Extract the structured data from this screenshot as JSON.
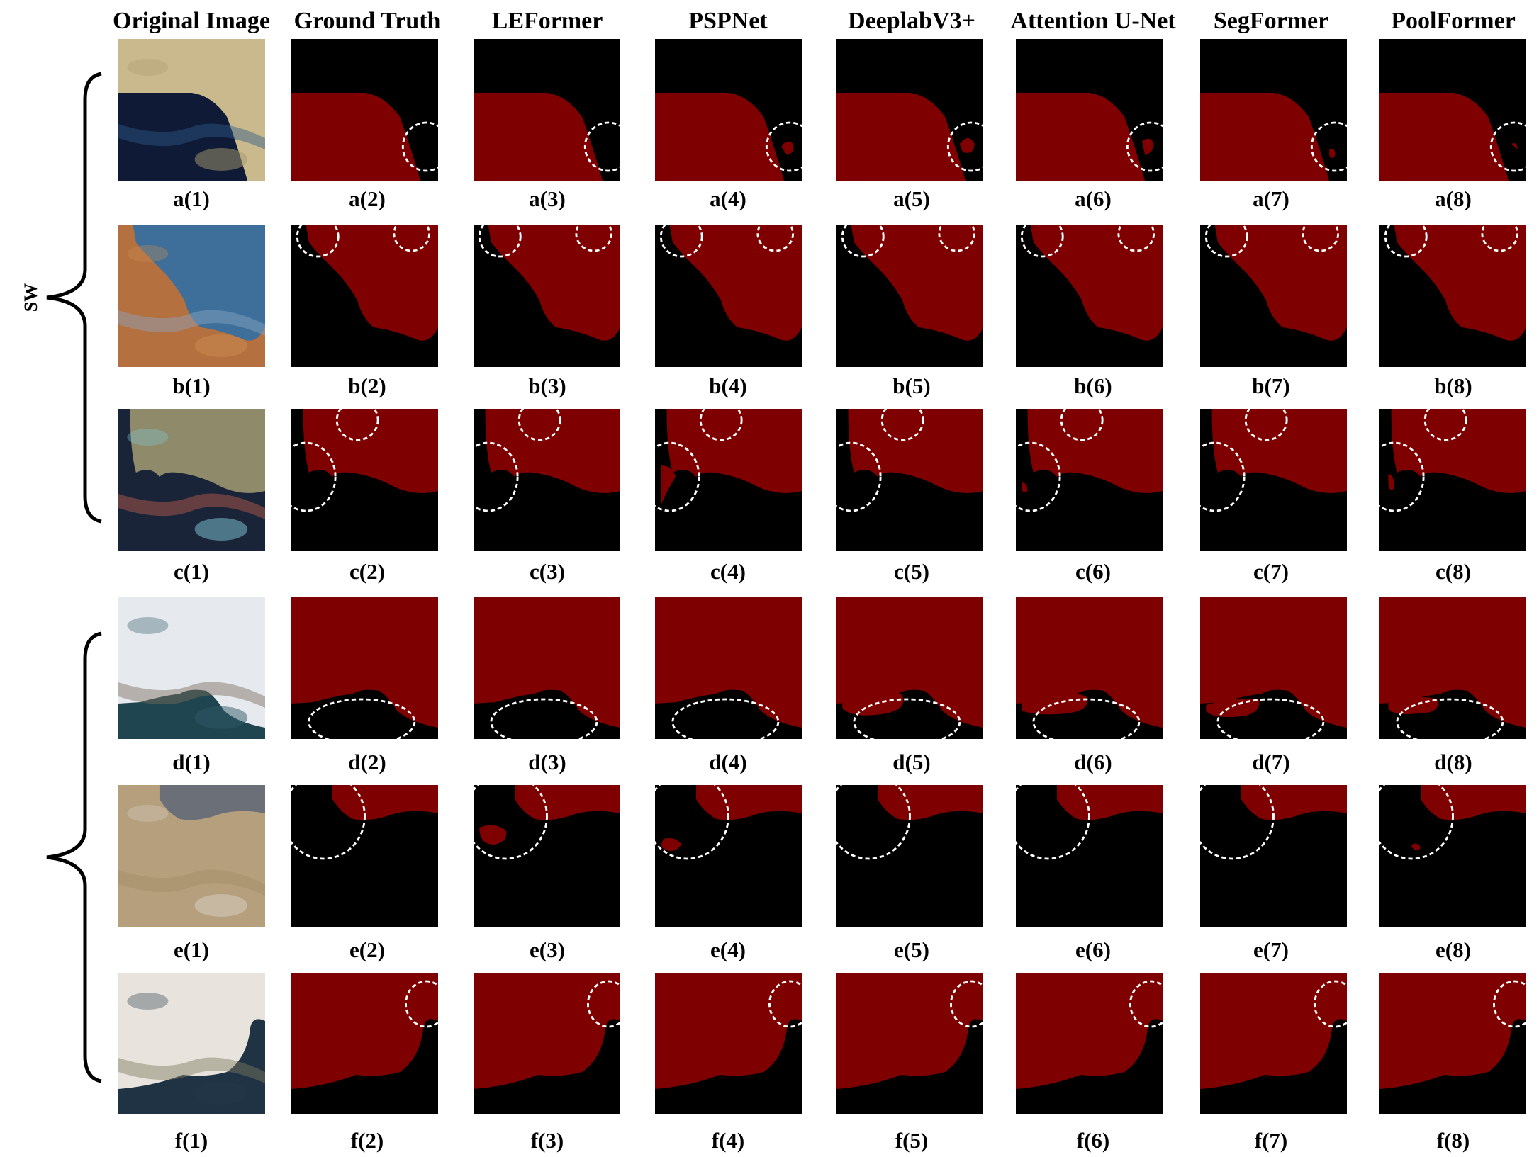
{
  "column_headers": [
    "Original Image",
    "Ground Truth",
    "LEFormer",
    "PSPNet",
    "DeeplabV3+",
    "Attention U-Net",
    "SegFormer",
    "PoolFormer"
  ],
  "row_letters": [
    "a",
    "b",
    "c",
    "d",
    "e",
    "f"
  ],
  "captions": [
    [
      "a(1)",
      "a(2)",
      "a(3)",
      "a(4)",
      "a(5)",
      "a(6)",
      "a(7)",
      "a(8)"
    ],
    [
      "b(1)",
      "b(2)",
      "b(3)",
      "b(4)",
      "b(5)",
      "b(6)",
      "b(7)",
      "b(8)"
    ],
    [
      "c(1)",
      "c(2)",
      "c(3)",
      "c(4)",
      "c(5)",
      "c(6)",
      "c(7)",
      "c(8)"
    ],
    [
      "d(1)",
      "d(2)",
      "d(3)",
      "d(4)",
      "d(5)",
      "d(6)",
      "d(7)",
      "d(8)"
    ],
    [
      "e(1)",
      "e(2)",
      "e(3)",
      "e(4)",
      "e(5)",
      "e(6)",
      "e(7)",
      "e(8)"
    ],
    [
      "f(1)",
      "f(2)",
      "f(3)",
      "f(4)",
      "f(5)",
      "f(6)",
      "f(7)",
      "f(8)"
    ]
  ],
  "group_label": "SW",
  "colors": {
    "lake": "#7f0000",
    "background": "#000000",
    "highlight": "#ffffff"
  }
}
